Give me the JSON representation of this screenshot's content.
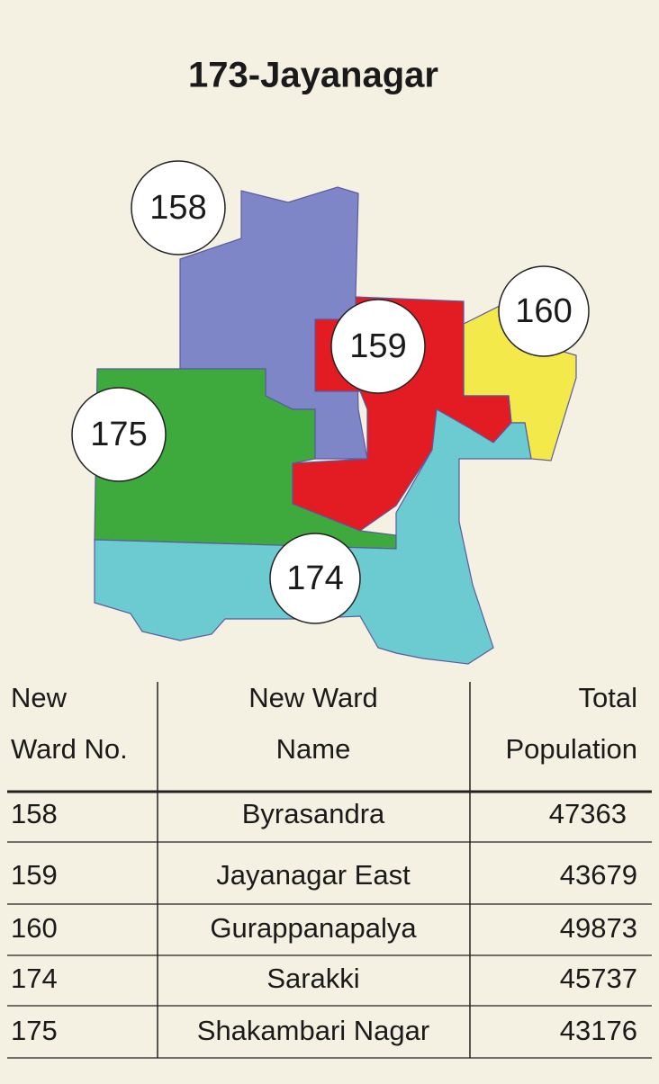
{
  "title": "173-Jayanagar",
  "map": {
    "wards": [
      {
        "label": "158"
      },
      {
        "label": "159"
      },
      {
        "label": "160"
      },
      {
        "label": "174"
      },
      {
        "label": "175"
      }
    ]
  },
  "table": {
    "columns": [
      [
        "New",
        "Ward No."
      ],
      [
        "New Ward",
        "Name"
      ],
      [
        "Total",
        "Population"
      ]
    ],
    "rows": [
      [
        "158",
        "Byrasandra",
        "47363"
      ],
      [
        "159",
        "Jayanagar East",
        "43679"
      ],
      [
        "160",
        "Gurappanapalya",
        "49873"
      ],
      [
        "174",
        "Sarakki",
        "45737"
      ],
      [
        "175",
        "Shakambari Nagar",
        "43176"
      ]
    ]
  }
}
